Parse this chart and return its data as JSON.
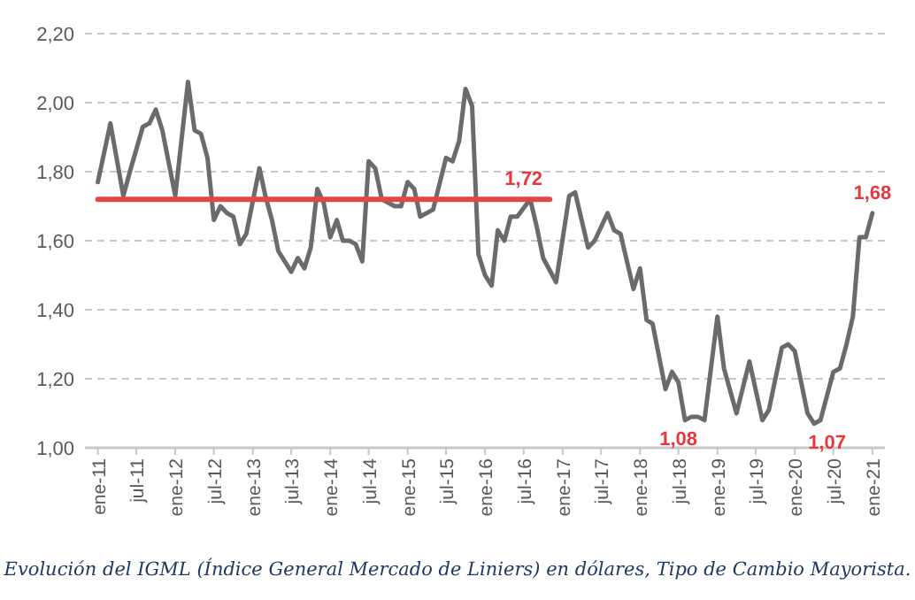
{
  "chart_data": {
    "type": "line",
    "xlim": [
      "2010-11",
      "2021-03"
    ],
    "xticks": [
      {
        "value": "2011-01",
        "label": "ene-11"
      },
      {
        "value": "2011-07",
        "label": "jul-11"
      },
      {
        "value": "2012-01",
        "label": "ene-12"
      },
      {
        "value": "2012-07",
        "label": "jul-12"
      },
      {
        "value": "2013-01",
        "label": "ene-13"
      },
      {
        "value": "2013-07",
        "label": "jul-13"
      },
      {
        "value": "2014-01",
        "label": "ene-14"
      },
      {
        "value": "2014-07",
        "label": "jul-14"
      },
      {
        "value": "2015-01",
        "label": "ene-15"
      },
      {
        "value": "2015-07",
        "label": "jul-15"
      },
      {
        "value": "2016-01",
        "label": "ene-16"
      },
      {
        "value": "2016-07",
        "label": "jul-16"
      },
      {
        "value": "2017-01",
        "label": "ene-17"
      },
      {
        "value": "2017-07",
        "label": "jul-17"
      },
      {
        "value": "2018-01",
        "label": "ene-18"
      },
      {
        "value": "2018-07",
        "label": "jul-18"
      },
      {
        "value": "2019-01",
        "label": "ene-19"
      },
      {
        "value": "2019-07",
        "label": "jul-19"
      },
      {
        "value": "2020-01",
        "label": "ene-20"
      },
      {
        "value": "2020-07",
        "label": "jul-20"
      },
      {
        "value": "2021-01",
        "label": "ene-21"
      }
    ],
    "ylim": [
      1.0,
      2.2
    ],
    "yticks": [
      {
        "value": 1.0,
        "label": "1,00"
      },
      {
        "value": 1.2,
        "label": "1,20"
      },
      {
        "value": 1.4,
        "label": "1,40"
      },
      {
        "value": 1.6,
        "label": "1,60"
      },
      {
        "value": 1.8,
        "label": "1,80"
      },
      {
        "value": 2.0,
        "label": "2,00"
      },
      {
        "value": 2.2,
        "label": "2,20"
      }
    ],
    "grid": "y",
    "marker": "none",
    "line_style": "solid",
    "series": [
      {
        "color": "#6b6b6b",
        "x": [
          "2011-01",
          "2011-03",
          "2011-05",
          "2011-06",
          "2011-08",
          "2011-09",
          "2011-10",
          "2011-11",
          "2012-01",
          "2012-03",
          "2012-04",
          "2012-05",
          "2012-06",
          "2012-07",
          "2012-08",
          "2012-09",
          "2012-10",
          "2012-11",
          "2012-12",
          "2013-02",
          "2013-03",
          "2013-04",
          "2013-05",
          "2013-07",
          "2013-08",
          "2013-09",
          "2013-10",
          "2013-11",
          "2013-12",
          "2014-01",
          "2014-02",
          "2014-03",
          "2014-04",
          "2014-05",
          "2014-06",
          "2014-07",
          "2014-08",
          "2014-09",
          "2014-11",
          "2014-12",
          "2015-01",
          "2015-02",
          "2015-03",
          "2015-05",
          "2015-07",
          "2015-08",
          "2015-09",
          "2015-10",
          "2015-11",
          "2015-12",
          "2016-01",
          "2016-02",
          "2016-03",
          "2016-04",
          "2016-05",
          "2016-06",
          "2016-08",
          "2016-09",
          "2016-10",
          "2016-12",
          "2017-02",
          "2017-03",
          "2017-05",
          "2017-06",
          "2017-08",
          "2017-09",
          "2017-10",
          "2017-12",
          "2018-01",
          "2018-02",
          "2018-03",
          "2018-05",
          "2018-06",
          "2018-07",
          "2018-08",
          "2018-09",
          "2018-10",
          "2018-11",
          "2019-01",
          "2019-02",
          "2019-04",
          "2019-06",
          "2019-08",
          "2019-09",
          "2019-11",
          "2019-12",
          "2020-01",
          "2020-03",
          "2020-04",
          "2020-05",
          "2020-07",
          "2020-08",
          "2020-09",
          "2020-10",
          "2020-11",
          "2020-12",
          "2021-01"
        ],
        "values": [
          1.77,
          1.94,
          1.73,
          1.8,
          1.93,
          1.94,
          1.98,
          1.92,
          1.73,
          2.06,
          1.92,
          1.91,
          1.84,
          1.66,
          1.7,
          1.68,
          1.67,
          1.59,
          1.62,
          1.81,
          1.73,
          1.66,
          1.57,
          1.51,
          1.55,
          1.52,
          1.58,
          1.75,
          1.71,
          1.61,
          1.66,
          1.6,
          1.6,
          1.59,
          1.54,
          1.83,
          1.81,
          1.72,
          1.7,
          1.7,
          1.77,
          1.75,
          1.67,
          1.69,
          1.84,
          1.83,
          1.89,
          2.04,
          1.99,
          1.56,
          1.5,
          1.47,
          1.63,
          1.6,
          1.67,
          1.67,
          1.72,
          1.64,
          1.55,
          1.48,
          1.73,
          1.74,
          1.58,
          1.6,
          1.68,
          1.63,
          1.62,
          1.46,
          1.52,
          1.37,
          1.36,
          1.17,
          1.22,
          1.19,
          1.08,
          1.09,
          1.09,
          1.08,
          1.38,
          1.23,
          1.1,
          1.25,
          1.08,
          1.11,
          1.29,
          1.3,
          1.28,
          1.1,
          1.07,
          1.08,
          1.22,
          1.23,
          1.3,
          1.38,
          1.61,
          1.61,
          1.68
        ]
      },
      {
        "color": "#e04848",
        "x": [
          "2011-01",
          "2016-11"
        ],
        "values": [
          1.72,
          1.72
        ]
      }
    ],
    "annotations": [
      {
        "text": "1,72",
        "x": "2016-07",
        "y": 1.72
      },
      {
        "text": "1,08",
        "x": "2018-07",
        "y": 1.08
      },
      {
        "text": "1,07",
        "x": "2020-06",
        "y": 1.07
      },
      {
        "text": "1,68",
        "x": "2021-01",
        "y": 1.68
      },
      "Evolución del IGML (Índice General Mercado de Liniers) en dólares, Tipo de Cambio Mayorista."
    ]
  }
}
